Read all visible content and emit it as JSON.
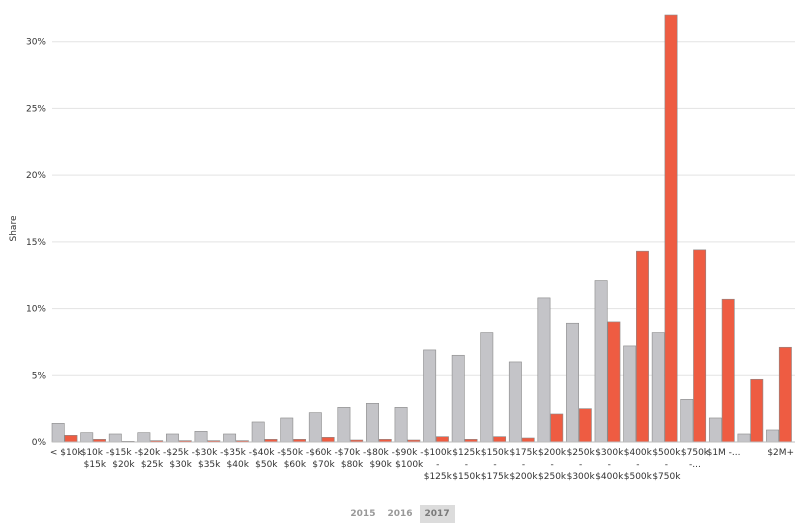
{
  "chart_data": {
    "type": "bar",
    "ylabel": "Share",
    "xlabel": "",
    "ylim": [
      0,
      32
    ],
    "yticks": [
      "0%",
      "5%",
      "10%",
      "15%",
      "20%",
      "25%",
      "30%"
    ],
    "grid": true,
    "categories": [
      "< $10k",
      "$10k - $15k",
      "$15k - $20k",
      "$20k - $25k",
      "$25k - $30k",
      "$30k - $35k",
      "$35k - $40k",
      "$40k - $50k",
      "$50k - $60k",
      "$60k - $70k",
      "$70k - $80k",
      "$80k - $90k",
      "$90k - $100k",
      "$100k - $125k",
      "$125k - $150k",
      "$150k - $175k",
      "$175k - $200k",
      "$200k - $250k",
      "$250k - $300k",
      "$300k - $400k",
      "$400k - $500k",
      "$500k - $750k",
      "$750k -...",
      "$1M -...",
      "",
      "$2M+"
    ],
    "category_lines": [
      [
        "< $10k"
      ],
      [
        "$10k -",
        "$15k"
      ],
      [
        "$15k -",
        "$20k"
      ],
      [
        "$20k -",
        "$25k"
      ],
      [
        "$25k -",
        "$30k"
      ],
      [
        "$30k -",
        "$35k"
      ],
      [
        "$35k -",
        "$40k"
      ],
      [
        "$40k -",
        "$50k"
      ],
      [
        "$50k -",
        "$60k"
      ],
      [
        "$60k -",
        "$70k"
      ],
      [
        "$70k -",
        "$80k"
      ],
      [
        "$80k -",
        "$90k"
      ],
      [
        "$90k -",
        "$100k"
      ],
      [
        "$100k",
        "-",
        "$125k"
      ],
      [
        "$125k",
        "-",
        "$150k"
      ],
      [
        "$150k",
        "-",
        "$175k"
      ],
      [
        "$175k",
        "-",
        "$200k"
      ],
      [
        "$200k",
        "-",
        "$250k"
      ],
      [
        "$250k",
        "-",
        "$300k"
      ],
      [
        "$300k",
        "-",
        "$400k"
      ],
      [
        "$400k",
        "-",
        "$500k"
      ],
      [
        "$500k",
        "-",
        "$750k"
      ],
      [
        "$750k",
        "-..."
      ],
      [
        "$1M -..."
      ],
      [
        ""
      ],
      [
        "$2M+"
      ]
    ],
    "series": [
      {
        "color": "#c4c4c8",
        "values": [
          1.4,
          0.7,
          0.6,
          0.7,
          0.6,
          0.8,
          0.6,
          1.5,
          1.8,
          2.2,
          2.6,
          2.9,
          2.6,
          6.9,
          6.5,
          8.2,
          6.0,
          10.8,
          8.9,
          12.1,
          7.2,
          8.2,
          3.2,
          1.8,
          0.6,
          0.9
        ]
      },
      {
        "color": "#ee5c42",
        "values": [
          0.5,
          0.2,
          0.05,
          0.1,
          0.1,
          0.1,
          0.1,
          0.2,
          0.2,
          0.35,
          0.15,
          0.2,
          0.15,
          0.4,
          0.2,
          0.4,
          0.3,
          2.1,
          2.5,
          9.0,
          14.3,
          32.0,
          14.4,
          10.7,
          4.7,
          7.1
        ]
      }
    ]
  },
  "year_toggle": {
    "options": [
      "2015",
      "2016",
      "2017"
    ],
    "selected": "2017"
  }
}
